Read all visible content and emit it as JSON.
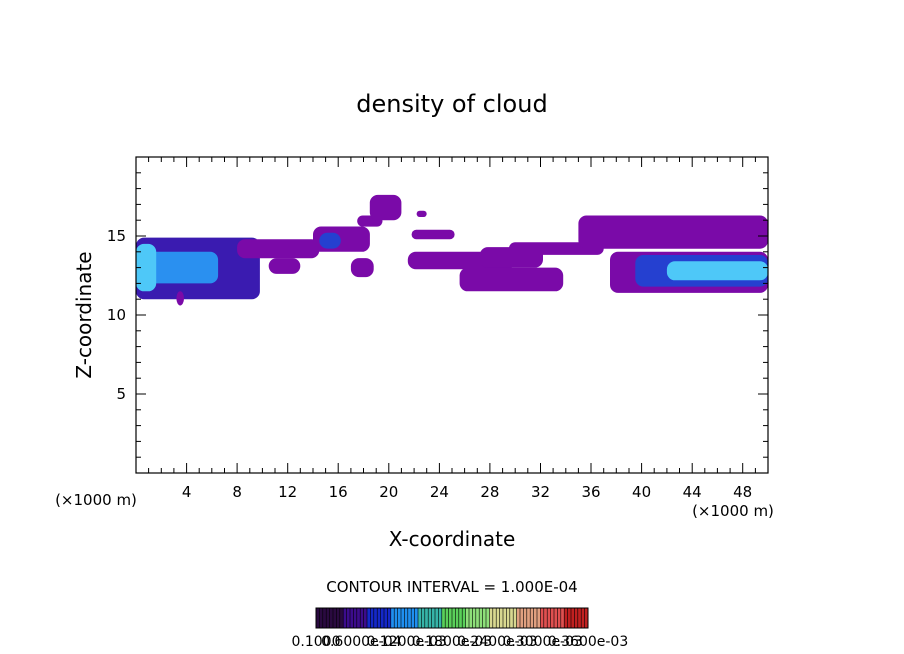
{
  "chart_data": {
    "type": "heatmap",
    "title": "density of cloud",
    "xlabel": "X-coordinate",
    "ylabel": "Z-coordinate",
    "x_unit": "(×1000 m)",
    "y_unit": "(×1000 m)",
    "xlim": [
      0,
      50
    ],
    "ylim": [
      0,
      20
    ],
    "x_ticks": [
      4,
      8,
      12,
      16,
      20,
      24,
      28,
      32,
      36,
      40,
      44,
      48
    ],
    "y_ticks": [
      5,
      10,
      15
    ],
    "contour_interval_label": "CONTOUR INTERVAL = 1.000E-04",
    "colorbar_labels": [
      "0.1000",
      "0.6000e-04",
      "0.1200e-03",
      "0.1800e-03",
      "0.2400e-03",
      "0.3000e-03",
      "0.3600e-03"
    ],
    "colorbar_colors": [
      "#2a0a40",
      "#3c0c8c",
      "#1428c8",
      "#1f8ff0",
      "#36b4a8",
      "#5ad05a",
      "#8ee07a",
      "#d8d890",
      "#e0a080",
      "#e05050",
      "#c02020"
    ],
    "cloud_regions": [
      {
        "x0": 0.0,
        "x1": 9.8,
        "z0": 11.0,
        "z1": 14.9,
        "level": 2
      },
      {
        "x0": 0.5,
        "x1": 6.5,
        "z0": 12.0,
        "z1": 14.0,
        "level": 4
      },
      {
        "x0": 0.0,
        "x1": 1.6,
        "z0": 11.5,
        "z1": 14.5,
        "level": 5
      },
      {
        "x0": 3.2,
        "x1": 3.8,
        "z0": 10.6,
        "z1": 11.5,
        "level": 1
      },
      {
        "x0": 8.0,
        "x1": 14.5,
        "z0": 13.6,
        "z1": 14.8,
        "level": 1
      },
      {
        "x0": 10.5,
        "x1": 13.0,
        "z0": 12.6,
        "z1": 13.6,
        "level": 1
      },
      {
        "x0": 14.0,
        "x1": 18.5,
        "z0": 14.0,
        "z1": 15.6,
        "level": 1
      },
      {
        "x0": 14.5,
        "x1": 16.2,
        "z0": 14.2,
        "z1": 15.2,
        "level": 3
      },
      {
        "x0": 17.5,
        "x1": 19.5,
        "z0": 15.6,
        "z1": 16.3,
        "level": 1
      },
      {
        "x0": 18.5,
        "x1": 21.0,
        "z0": 16.0,
        "z1": 17.6,
        "level": 1
      },
      {
        "x0": 17.0,
        "x1": 18.8,
        "z0": 12.4,
        "z1": 13.6,
        "level": 1
      },
      {
        "x0": 21.8,
        "x1": 25.2,
        "z0": 14.8,
        "z1": 15.4,
        "level": 1
      },
      {
        "x0": 22.2,
        "x1": 23.0,
        "z0": 16.2,
        "z1": 16.6,
        "level": 1
      },
      {
        "x0": 21.5,
        "x1": 30.0,
        "z0": 12.9,
        "z1": 14.0,
        "level": 1
      },
      {
        "x0": 25.6,
        "x1": 33.8,
        "z0": 11.5,
        "z1": 13.0,
        "level": 1
      },
      {
        "x0": 27.2,
        "x1": 32.2,
        "z0": 13.0,
        "z1": 14.3,
        "level": 1
      },
      {
        "x0": 29.5,
        "x1": 37.0,
        "z0": 13.8,
        "z1": 14.6,
        "level": 1
      },
      {
        "x0": 35.0,
        "x1": 50.0,
        "z0": 14.2,
        "z1": 16.3,
        "level": 1
      },
      {
        "x0": 37.5,
        "x1": 50.0,
        "z0": 11.4,
        "z1": 14.0,
        "level": 1
      },
      {
        "x0": 39.5,
        "x1": 50.0,
        "z0": 11.8,
        "z1": 13.8,
        "level": 3
      },
      {
        "x0": 42.0,
        "x1": 50.0,
        "z0": 12.2,
        "z1": 13.4,
        "level": 5
      }
    ]
  }
}
